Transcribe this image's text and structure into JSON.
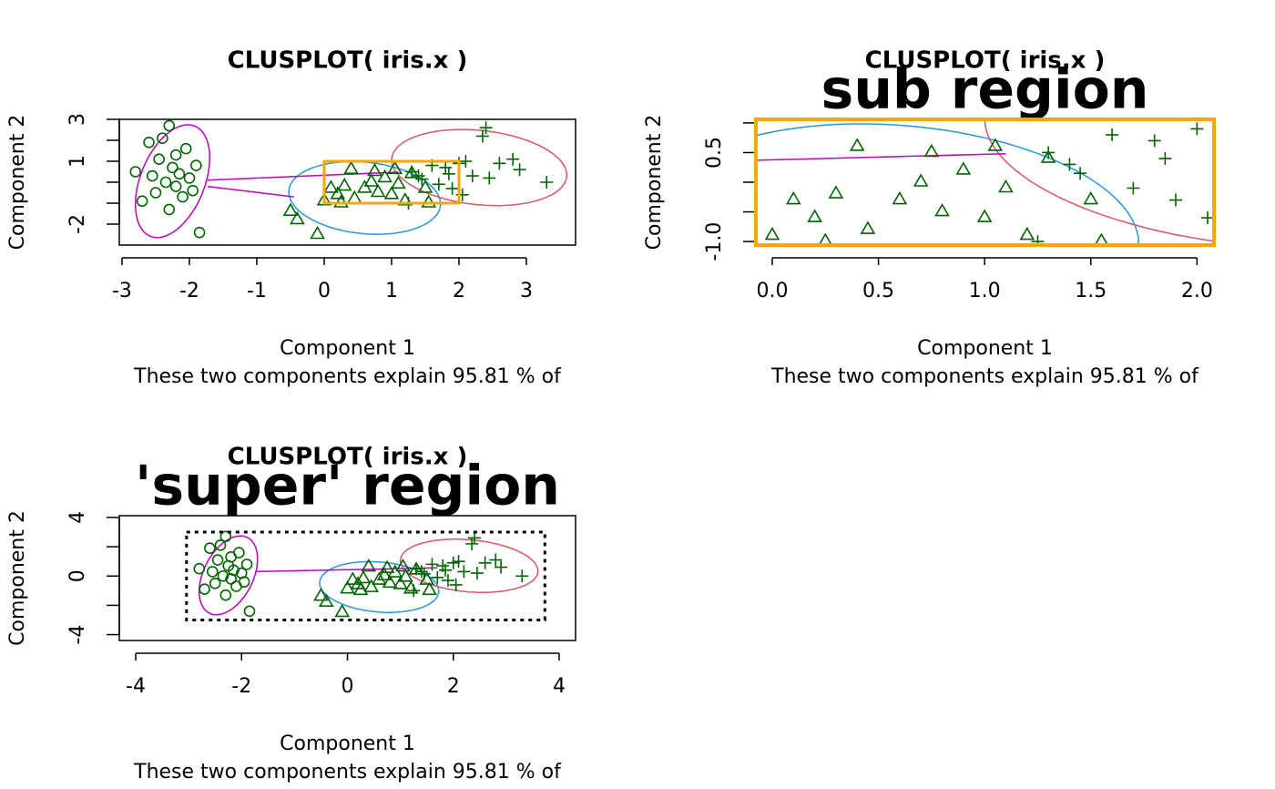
{
  "chart_data": [
    {
      "type": "scatter",
      "title": "CLUSPLOT( iris.x )",
      "xlabel": "Component 1",
      "ylabel": "Component 2",
      "caption": "These two components explain 95.81 % of",
      "xlim": [
        -3.04,
        3.73
      ],
      "ylim": [
        -3,
        3
      ],
      "xticks": [
        -3,
        -2,
        -1,
        0,
        1,
        2,
        3
      ],
      "yticks": [
        -2,
        1,
        3
      ],
      "yticks_unlabeled": [
        -1,
        0,
        2
      ],
      "series": [
        {
          "color": "#006400",
          "marker": "circle",
          "x": [
            -2.8,
            -2.7,
            -2.6,
            -2.55,
            -2.5,
            -2.45,
            -2.4,
            -2.35,
            -2.3,
            -2.25,
            -2.2,
            -2.2,
            -2.15,
            -2.1,
            -2.05,
            -2.0,
            -1.95,
            -1.9,
            -1.85,
            -2.3
          ],
          "y": [
            0.5,
            -0.9,
            1.9,
            0.3,
            -0.5,
            1.1,
            2.1,
            0.0,
            -1.3,
            0.7,
            -0.2,
            1.3,
            0.4,
            -0.7,
            1.6,
            0.2,
            -0.4,
            0.8,
            -2.4,
            2.7
          ]
        },
        {
          "color": "#006400",
          "marker": "triangle",
          "x": [
            -0.5,
            -0.4,
            -0.1,
            0.0,
            0.1,
            0.2,
            0.25,
            0.3,
            0.4,
            0.45,
            0.6,
            0.7,
            0.75,
            0.8,
            0.9,
            1.0,
            1.05,
            1.1,
            1.2,
            1.3,
            1.5,
            1.55
          ],
          "y": [
            -1.4,
            -1.8,
            -2.5,
            -0.9,
            -0.3,
            -0.6,
            -1.0,
            -0.2,
            0.6,
            -0.8,
            -0.3,
            0.0,
            0.5,
            -0.5,
            0.2,
            -0.6,
            0.6,
            -0.1,
            -0.9,
            0.4,
            -0.3,
            -1.0
          ]
        },
        {
          "color": "#006400",
          "marker": "plus",
          "x": [
            1.25,
            1.3,
            1.4,
            1.45,
            1.6,
            1.7,
            1.8,
            1.85,
            1.9,
            2.0,
            2.05,
            2.1,
            2.2,
            2.35,
            2.4,
            2.45,
            2.6,
            2.8,
            2.9,
            3.3
          ],
          "y": [
            -1.0,
            0.5,
            0.3,
            0.15,
            0.8,
            -0.1,
            0.7,
            0.4,
            -0.3,
            0.9,
            -0.6,
            1.0,
            0.3,
            2.2,
            2.6,
            0.2,
            0.9,
            1.1,
            0.6,
            0.0
          ]
        }
      ],
      "ellipses": [
        {
          "color": "#c000c0",
          "center": [
            -2.25,
            0.05
          ],
          "axes": [
            0.5,
            2.7
          ],
          "angle": -5
        },
        {
          "color": "#2297e6",
          "center": [
            0.6,
            -0.75
          ],
          "axes": [
            1.1,
            1.75
          ],
          "angle": 10
        },
        {
          "color": "#df536b",
          "center": [
            2.3,
            0.7
          ],
          "axes": [
            1.25,
            1.85
          ],
          "angle": 15
        }
      ],
      "segments": [
        {
          "color": "#c000c0",
          "x": [
            -1.73,
            1.1
          ],
          "y": [
            0.1,
            0.48
          ]
        },
        {
          "color": "#c000c0",
          "x": [
            -1.73,
            -0.45
          ],
          "y": [
            -0.2,
            -0.7
          ]
        }
      ],
      "region": {
        "xlim": [
          0,
          2
        ],
        "ylim": [
          -1,
          1
        ],
        "color": "#ffa500",
        "style": "solid"
      }
    },
    {
      "type": "scatter",
      "title": "CLUSPLOT( iris.x )",
      "annotation": "sub region",
      "xlabel": "Component 1",
      "ylabel": "Component 2",
      "caption": "These two components explain 95.81 % of",
      "xlim": [
        -0.077,
        2.08
      ],
      "ylim": [
        -1.06,
        1.06
      ],
      "xticks": [
        {
          "value": 0,
          "label": "0.0"
        },
        {
          "value": 0.5,
          "label": "0.5"
        },
        {
          "value": 1,
          "label": "1.0"
        },
        {
          "value": 1.5,
          "label": "1.5"
        },
        {
          "value": 2,
          "label": "2.0"
        }
      ],
      "yticks": [
        {
          "value": -1,
          "label": "-1.0"
        },
        {
          "value": 0.5,
          "label": "0.5"
        }
      ],
      "yticks_unlabeled": [
        -0.5,
        0,
        1
      ],
      "frame_color": "#ffa500",
      "series": [
        {
          "color": "#006400",
          "marker": "triangle",
          "x": [
            0.0,
            0.1,
            0.2,
            0.25,
            0.3,
            0.4,
            0.45,
            0.6,
            0.7,
            0.75,
            0.8,
            0.9,
            1.0,
            1.05,
            1.1,
            1.2,
            1.3,
            1.5,
            1.55
          ],
          "y": [
            -0.9,
            -0.3,
            -0.6,
            -1.0,
            -0.2,
            0.6,
            -0.8,
            -0.3,
            0.0,
            0.5,
            -0.5,
            0.2,
            -0.6,
            0.6,
            -0.1,
            -0.9,
            0.4,
            -0.3,
            -1.0
          ]
        },
        {
          "color": "#006400",
          "marker": "plus",
          "x": [
            1.25,
            1.3,
            1.4,
            1.45,
            1.6,
            1.7,
            1.8,
            1.85,
            1.9,
            2.0,
            2.05
          ],
          "y": [
            -1.0,
            0.5,
            0.3,
            0.15,
            0.8,
            -0.1,
            0.7,
            0.4,
            -0.3,
            0.9,
            -0.6
          ]
        }
      ],
      "ellipses": [
        {
          "color": "#2297e6",
          "center": [
            0.6,
            -0.75
          ],
          "axes": [
            1.1,
            1.75
          ],
          "angle": 10
        },
        {
          "color": "#df536b",
          "center": [
            2.3,
            0.7
          ],
          "axes": [
            1.25,
            1.85
          ],
          "angle": 15
        }
      ],
      "segments": [
        {
          "color": "#c000c0",
          "x": [
            -0.077,
            1.1
          ],
          "y": [
            0.37,
            0.48
          ]
        }
      ]
    },
    {
      "type": "scatter",
      "title": "CLUSPLOT( iris.x )",
      "annotation": "'super' region",
      "xlabel": "Component 1",
      "ylabel": "Component 2",
      "caption": "These two components explain 95.81 % of",
      "xlim": [
        -4.31,
        4.31
      ],
      "ylim": [
        -4.4,
        4.12
      ],
      "xticks": [
        -4,
        -2,
        0,
        2,
        4
      ],
      "yticks": [
        -4,
        0,
        4
      ],
      "yticks_unlabeled": [
        -2,
        2
      ],
      "series": [
        {
          "color": "#006400",
          "marker": "circle",
          "x": [
            -2.8,
            -2.7,
            -2.6,
            -2.55,
            -2.5,
            -2.45,
            -2.4,
            -2.35,
            -2.3,
            -2.25,
            -2.2,
            -2.2,
            -2.15,
            -2.1,
            -2.05,
            -2.0,
            -1.95,
            -1.9,
            -1.85,
            -2.3
          ],
          "y": [
            0.5,
            -0.9,
            1.9,
            0.3,
            -0.5,
            1.1,
            2.1,
            0.0,
            -1.3,
            0.7,
            -0.2,
            1.3,
            0.4,
            -0.7,
            1.6,
            0.2,
            -0.4,
            0.8,
            -2.4,
            2.7
          ]
        },
        {
          "color": "#006400",
          "marker": "triangle",
          "x": [
            -0.5,
            -0.4,
            -0.1,
            0.0,
            0.1,
            0.2,
            0.25,
            0.3,
            0.4,
            0.45,
            0.6,
            0.7,
            0.75,
            0.8,
            0.9,
            1.0,
            1.05,
            1.1,
            1.2,
            1.3,
            1.5,
            1.55
          ],
          "y": [
            -1.4,
            -1.8,
            -2.5,
            -0.9,
            -0.3,
            -0.6,
            -1.0,
            -0.2,
            0.6,
            -0.8,
            -0.3,
            0.0,
            0.5,
            -0.5,
            0.2,
            -0.6,
            0.6,
            -0.1,
            -0.9,
            0.4,
            -0.3,
            -1.0
          ]
        },
        {
          "color": "#006400",
          "marker": "plus",
          "x": [
            1.25,
            1.3,
            1.4,
            1.45,
            1.6,
            1.7,
            1.8,
            1.85,
            1.9,
            2.0,
            2.05,
            2.1,
            2.2,
            2.35,
            2.4,
            2.45,
            2.6,
            2.8,
            2.9,
            3.3
          ],
          "y": [
            -1.0,
            0.5,
            0.3,
            0.15,
            0.8,
            -0.1,
            0.7,
            0.4,
            -0.3,
            0.9,
            -0.6,
            1.0,
            0.3,
            2.2,
            2.6,
            0.2,
            0.9,
            1.1,
            0.6,
            0.0
          ]
        }
      ],
      "ellipses": [
        {
          "color": "#c000c0",
          "center": [
            -2.25,
            0.05
          ],
          "axes": [
            0.5,
            2.7
          ],
          "angle": -5
        },
        {
          "color": "#2297e6",
          "center": [
            0.6,
            -0.75
          ],
          "axes": [
            1.1,
            1.75
          ],
          "angle": 10
        },
        {
          "color": "#df536b",
          "center": [
            2.3,
            0.7
          ],
          "axes": [
            1.25,
            1.85
          ],
          "angle": 15
        }
      ],
      "segments": [
        {
          "color": "#c000c0",
          "x": [
            -1.73,
            1.7
          ],
          "y": [
            0.3,
            0.56
          ]
        }
      ],
      "region": {
        "xlim": [
          -3.04,
          3.73
        ],
        "ylim": [
          -3,
          3
        ],
        "color": "#000000",
        "style": "dotted"
      }
    }
  ]
}
